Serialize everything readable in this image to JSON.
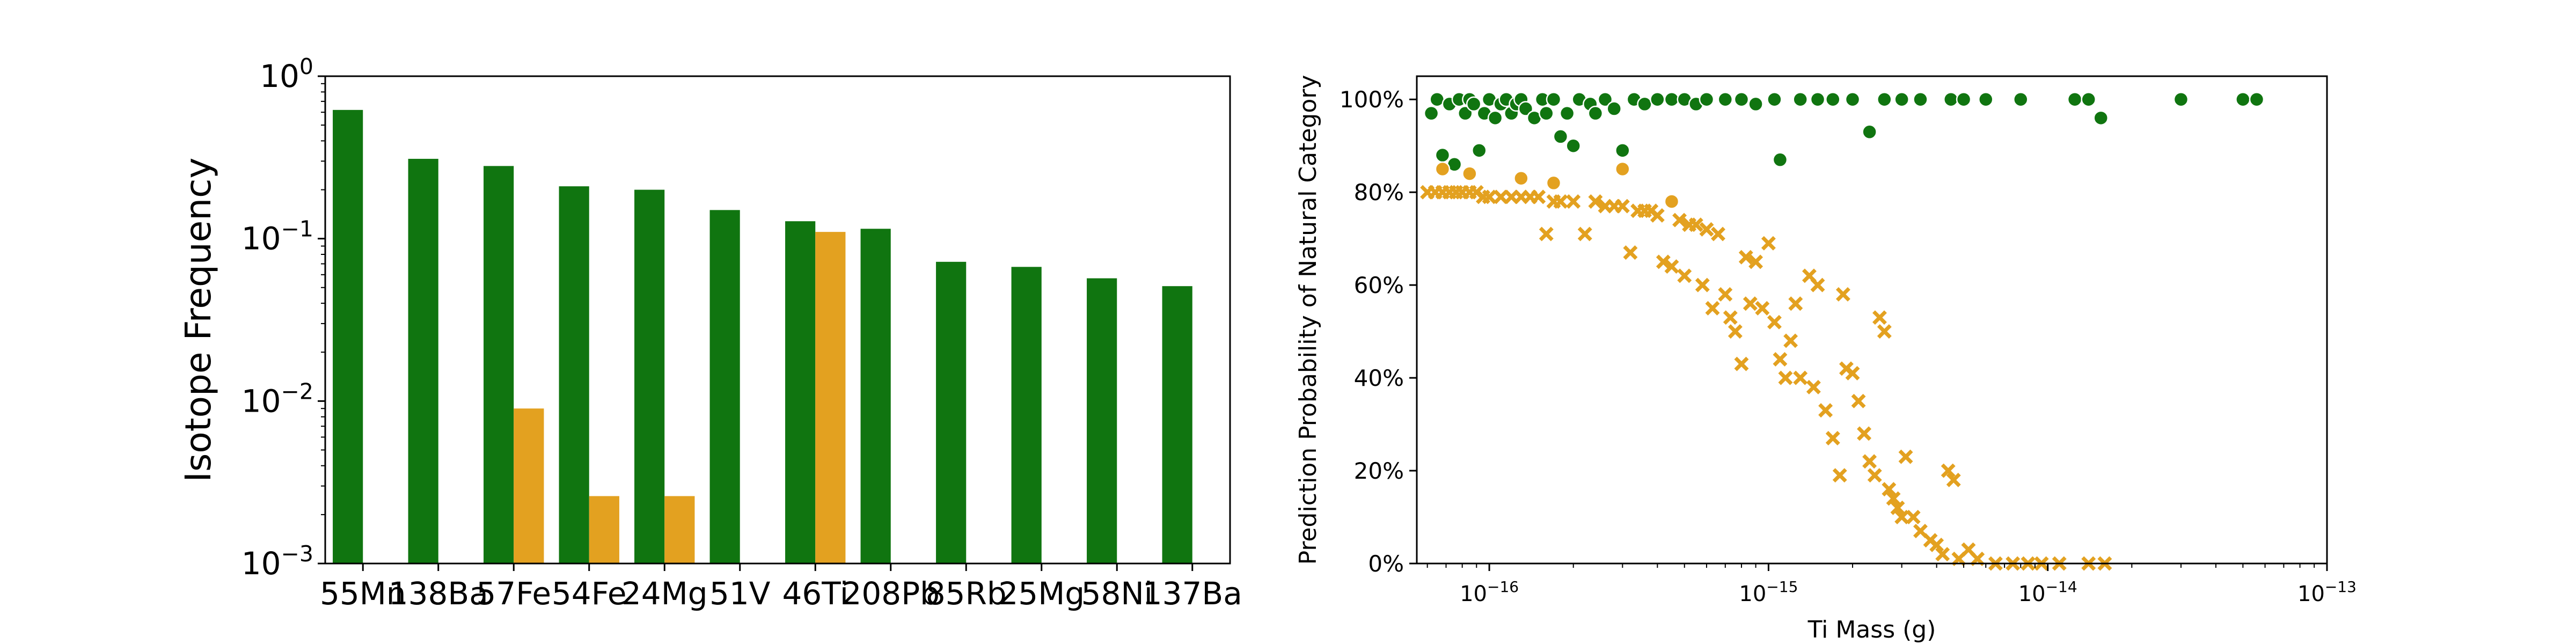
{
  "colors": {
    "green": "#107510",
    "orange": "#E3A120",
    "axis": "#000000",
    "background": "#ffffff"
  },
  "chart_data": [
    {
      "type": "bar",
      "title": "",
      "xlabel": "",
      "ylabel": "Isotope Frequency",
      "yscale": "log",
      "ylim": [
        0.001,
        1
      ],
      "yticks": [
        {
          "value": 0.001,
          "base": "10",
          "exp": "−3"
        },
        {
          "value": 0.01,
          "base": "10",
          "exp": "−2"
        },
        {
          "value": 0.1,
          "base": "10",
          "exp": "−1"
        },
        {
          "value": 1,
          "base": "10",
          "exp": "0"
        }
      ],
      "categories": [
        "55Mn",
        "138Ba",
        "57Fe",
        "54Fe",
        "24Mg",
        "51V",
        "46Ti",
        "208Pb",
        "85Rb",
        "25Mg",
        "58Ni",
        "137Ba"
      ],
      "series": [
        {
          "color": "#107510",
          "values": [
            0.62,
            0.31,
            0.28,
            0.21,
            0.2,
            0.15,
            0.128,
            0.115,
            0.072,
            0.067,
            0.057,
            0.051
          ]
        },
        {
          "color": "#E3A120",
          "values": [
            null,
            null,
            0.009,
            0.0026,
            0.0026,
            null,
            0.11,
            null,
            null,
            null,
            null,
            null
          ]
        }
      ],
      "grid": false,
      "legend": "none"
    },
    {
      "type": "scatter",
      "title": "",
      "xlabel": "Ti Mass (g)",
      "ylabel": "Prediction Probability of Natural Category",
      "xscale": "log",
      "xlim": [
        5.5e-17,
        1e-13
      ],
      "ylim": [
        0,
        1.05
      ],
      "xticks": [
        {
          "value": 1e-16,
          "base": "10",
          "exp": "−16"
        },
        {
          "value": 1e-15,
          "base": "10",
          "exp": "−15"
        },
        {
          "value": 1e-14,
          "base": "10",
          "exp": "−14"
        },
        {
          "value": 1e-13,
          "base": "10",
          "exp": "−13"
        }
      ],
      "yticks": [
        {
          "value": 0,
          "label": "0%"
        },
        {
          "value": 0.2,
          "label": "20%"
        },
        {
          "value": 0.4,
          "label": "40%"
        },
        {
          "value": 0.6,
          "label": "60%"
        },
        {
          "value": 0.8,
          "label": "80%"
        },
        {
          "value": 1.0,
          "label": "100%"
        }
      ],
      "series": [
        {
          "marker": "circle",
          "color": "#107510",
          "points": [
            [
              6.2e-17,
              0.97
            ],
            [
              6.5e-17,
              1.0
            ],
            [
              6.8e-17,
              0.88
            ],
            [
              7.2e-17,
              0.99
            ],
            [
              7.5e-17,
              0.86
            ],
            [
              7.8e-17,
              1.0
            ],
            [
              8.2e-17,
              0.97
            ],
            [
              8.5e-17,
              1.0
            ],
            [
              8.8e-17,
              0.99
            ],
            [
              9.2e-17,
              0.89
            ],
            [
              9.6e-17,
              0.97
            ],
            [
              1e-16,
              1.0
            ],
            [
              1.05e-16,
              0.96
            ],
            [
              1.1e-16,
              0.99
            ],
            [
              1.15e-16,
              1.0
            ],
            [
              1.2e-16,
              0.97
            ],
            [
              1.25e-16,
              0.99
            ],
            [
              1.3e-16,
              1.0
            ],
            [
              1.35e-16,
              0.98
            ],
            [
              1.45e-16,
              0.96
            ],
            [
              1.55e-16,
              1.0
            ],
            [
              1.6e-16,
              0.97
            ],
            [
              1.7e-16,
              1.0
            ],
            [
              1.8e-16,
              0.92
            ],
            [
              1.9e-16,
              0.97
            ],
            [
              2e-16,
              0.9
            ],
            [
              2.1e-16,
              1.0
            ],
            [
              2.3e-16,
              0.99
            ],
            [
              2.4e-16,
              0.97
            ],
            [
              2.6e-16,
              1.0
            ],
            [
              2.8e-16,
              0.98
            ],
            [
              3e-16,
              0.89
            ],
            [
              3.3e-16,
              1.0
            ],
            [
              3.6e-16,
              0.99
            ],
            [
              4e-16,
              1.0
            ],
            [
              4.5e-16,
              1.0
            ],
            [
              5e-16,
              1.0
            ],
            [
              5.5e-16,
              0.99
            ],
            [
              6e-16,
              1.0
            ],
            [
              7e-16,
              1.0
            ],
            [
              8e-16,
              1.0
            ],
            [
              9e-16,
              0.99
            ],
            [
              1.05e-15,
              1.0
            ],
            [
              1.1e-15,
              0.87
            ],
            [
              1.3e-15,
              1.0
            ],
            [
              1.5e-15,
              1.0
            ],
            [
              1.7e-15,
              1.0
            ],
            [
              2e-15,
              1.0
            ],
            [
              2.3e-15,
              0.93
            ],
            [
              2.6e-15,
              1.0
            ],
            [
              3e-15,
              1.0
            ],
            [
              3.5e-15,
              1.0
            ],
            [
              4.5e-15,
              1.0
            ],
            [
              5e-15,
              1.0
            ],
            [
              6e-15,
              1.0
            ],
            [
              8e-15,
              1.0
            ],
            [
              1.25e-14,
              1.0
            ],
            [
              1.4e-14,
              1.0
            ],
            [
              1.55e-14,
              0.96
            ],
            [
              3e-14,
              1.0
            ],
            [
              5e-14,
              1.0
            ],
            [
              5.6e-14,
              1.0
            ]
          ]
        },
        {
          "marker": "circle",
          "color": "#E3A120",
          "points": [
            [
              6.8e-17,
              0.85
            ],
            [
              8.5e-17,
              0.84
            ],
            [
              1.3e-16,
              0.83
            ],
            [
              1.7e-16,
              0.82
            ],
            [
              3e-16,
              0.85
            ],
            [
              4.5e-16,
              0.78
            ]
          ]
        },
        {
          "marker": "x",
          "color": "#E3A120",
          "points": [
            [
              6e-17,
              0.8
            ],
            [
              6.4e-17,
              0.8
            ],
            [
              6.8e-17,
              0.8
            ],
            [
              7.2e-17,
              0.8
            ],
            [
              7.6e-17,
              0.8
            ],
            [
              8e-17,
              0.8
            ],
            [
              8.5e-17,
              0.8
            ],
            [
              9e-17,
              0.8
            ],
            [
              9.5e-17,
              0.79
            ],
            [
              1e-16,
              0.79
            ],
            [
              1.1e-16,
              0.79
            ],
            [
              1.2e-16,
              0.79
            ],
            [
              1.3e-16,
              0.79
            ],
            [
              1.4e-16,
              0.79
            ],
            [
              1.5e-16,
              0.79
            ],
            [
              1.6e-16,
              0.71
            ],
            [
              1.7e-16,
              0.78
            ],
            [
              1.8e-16,
              0.78
            ],
            [
              2e-16,
              0.78
            ],
            [
              2.2e-16,
              0.71
            ],
            [
              2.4e-16,
              0.78
            ],
            [
              2.6e-16,
              0.77
            ],
            [
              2.8e-16,
              0.77
            ],
            [
              3e-16,
              0.77
            ],
            [
              3.2e-16,
              0.67
            ],
            [
              3.4e-16,
              0.76
            ],
            [
              3.6e-16,
              0.76
            ],
            [
              3.8e-16,
              0.76
            ],
            [
              4e-16,
              0.75
            ],
            [
              4.2e-16,
              0.65
            ],
            [
              4.5e-16,
              0.64
            ],
            [
              4.8e-16,
              0.74
            ],
            [
              5e-16,
              0.62
            ],
            [
              5.2e-16,
              0.73
            ],
            [
              5.5e-16,
              0.73
            ],
            [
              5.8e-16,
              0.6
            ],
            [
              6e-16,
              0.72
            ],
            [
              6.3e-16,
              0.55
            ],
            [
              6.6e-16,
              0.71
            ],
            [
              7e-16,
              0.58
            ],
            [
              7.3e-16,
              0.53
            ],
            [
              7.6e-16,
              0.5
            ],
            [
              8e-16,
              0.43
            ],
            [
              8.3e-16,
              0.66
            ],
            [
              8.6e-16,
              0.56
            ],
            [
              9e-16,
              0.65
            ],
            [
              9.5e-16,
              0.55
            ],
            [
              1e-15,
              0.69
            ],
            [
              1.05e-15,
              0.52
            ],
            [
              1.1e-15,
              0.44
            ],
            [
              1.15e-15,
              0.4
            ],
            [
              1.2e-15,
              0.48
            ],
            [
              1.25e-15,
              0.56
            ],
            [
              1.3e-15,
              0.4
            ],
            [
              1.4e-15,
              0.62
            ],
            [
              1.45e-15,
              0.38
            ],
            [
              1.5e-15,
              0.6
            ],
            [
              1.6e-15,
              0.33
            ],
            [
              1.7e-15,
              0.27
            ],
            [
              1.8e-15,
              0.19
            ],
            [
              1.85e-15,
              0.58
            ],
            [
              1.9e-15,
              0.42
            ],
            [
              2e-15,
              0.41
            ],
            [
              2.1e-15,
              0.35
            ],
            [
              2.2e-15,
              0.28
            ],
            [
              2.3e-15,
              0.22
            ],
            [
              2.4e-15,
              0.19
            ],
            [
              2.5e-15,
              0.53
            ],
            [
              2.6e-15,
              0.5
            ],
            [
              2.7e-15,
              0.16
            ],
            [
              2.8e-15,
              0.14
            ],
            [
              2.9e-15,
              0.12
            ],
            [
              3e-15,
              0.1
            ],
            [
              3.1e-15,
              0.23
            ],
            [
              3.3e-15,
              0.1
            ],
            [
              3.5e-15,
              0.07
            ],
            [
              3.8e-15,
              0.05
            ],
            [
              4e-15,
              0.04
            ],
            [
              4.2e-15,
              0.02
            ],
            [
              4.4e-15,
              0.2
            ],
            [
              4.6e-15,
              0.18
            ],
            [
              4.8e-15,
              0.01
            ],
            [
              5.2e-15,
              0.03
            ],
            [
              5.6e-15,
              0.01
            ],
            [
              6.5e-15,
              0.0
            ],
            [
              7.5e-15,
              0.0
            ],
            [
              8.5e-15,
              0.0
            ],
            [
              9.5e-15,
              0.0
            ],
            [
              1.1e-14,
              0.0
            ],
            [
              1.4e-14,
              0.0
            ],
            [
              1.6e-14,
              0.0
            ]
          ]
        }
      ],
      "grid": false,
      "legend": "none"
    }
  ]
}
